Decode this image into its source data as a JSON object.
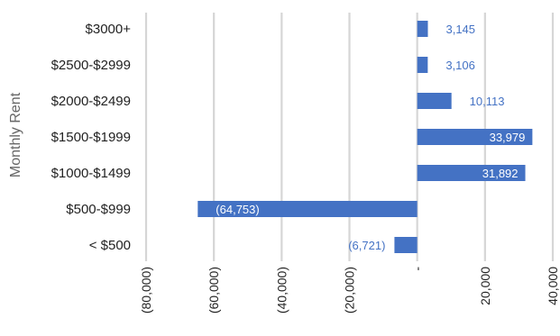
{
  "chart_data": {
    "type": "bar",
    "orientation": "horizontal",
    "ylabel": "Monthly Rent",
    "xlabel": "",
    "title": "",
    "categories": [
      "$3000+",
      "$2500-$2999",
      "$2000-$2499",
      "$1500-$1999",
      "$1000-$1499",
      "$500-$999",
      "< $500"
    ],
    "values": [
      3145,
      3106,
      10113,
      33979,
      31892,
      -64753,
      -6721
    ],
    "data_labels": [
      "3,145",
      "3,106",
      "10,113",
      "33,979",
      "31,892",
      "(64,753)",
      "(6,721)"
    ],
    "xlim": [
      -80000,
      40000
    ],
    "x_ticks": [
      -80000,
      -60000,
      -40000,
      -20000,
      0,
      20000,
      40000
    ],
    "x_tick_labels": [
      "(80,000)",
      "(60,000)",
      "(40,000)",
      "(20,000)",
      "-",
      "20,000",
      "40,000"
    ],
    "grid": true,
    "legend": "none",
    "colors": {
      "bar": "#4472C4",
      "label_outside": "#4472C4",
      "label_inside": "#ffffff",
      "grid": "#d6d6d6",
      "text": "#222222",
      "axis_title": "#666666"
    }
  }
}
